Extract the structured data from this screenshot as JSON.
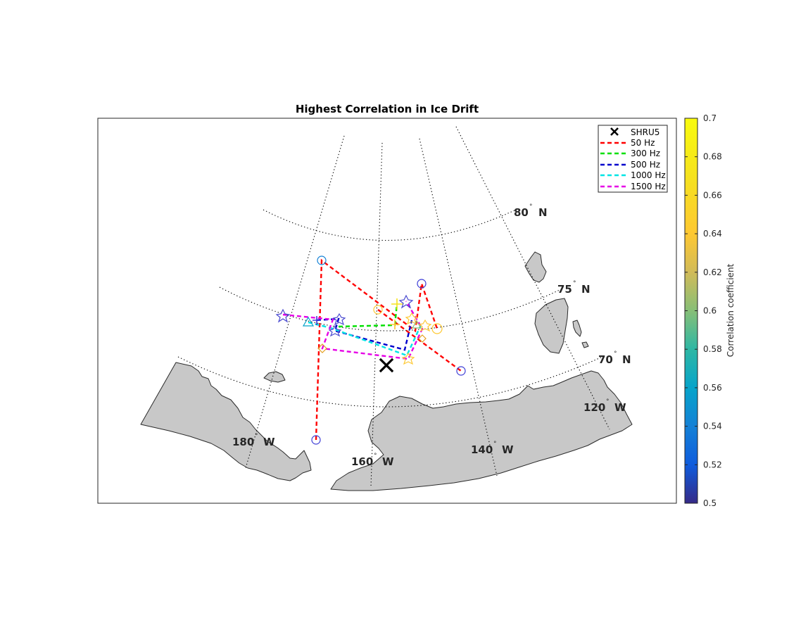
{
  "title": "Highest Correlation in Ice Drift",
  "colorbar": {
    "label": "Correlation coefficient",
    "ticks": [
      "0.5",
      "0.52",
      "0.54",
      "0.56",
      "0.58",
      "0.6",
      "0.62",
      "0.64",
      "0.66",
      "0.68",
      "0.7"
    ],
    "range": [
      0.5,
      0.7
    ],
    "colormap": "parula"
  },
  "legend": {
    "placement": "top-right",
    "entries": [
      {
        "label": "SHRU5",
        "color": "#000000",
        "marker": "x"
      },
      {
        "label": "50 Hz",
        "color": "#ff0000",
        "style": "dashed"
      },
      {
        "label": "300 Hz",
        "color": "#00e000",
        "style": "dashed"
      },
      {
        "label": "500 Hz",
        "color": "#0000cc",
        "style": "dashed"
      },
      {
        "label": "1000 Hz",
        "color": "#00e5e5",
        "style": "dashed"
      },
      {
        "label": "1500 Hz",
        "color": "#e600e6",
        "style": "dashed"
      }
    ]
  },
  "graticule_labels": {
    "parallels": [
      {
        "value": "80",
        "suffix": "N"
      },
      {
        "value": "75",
        "suffix": "N"
      },
      {
        "value": "70",
        "suffix": "N"
      }
    ],
    "meridians": [
      {
        "value": "180",
        "suffix": "W"
      },
      {
        "value": "160",
        "suffix": "W"
      },
      {
        "value": "140",
        "suffix": "W"
      },
      {
        "value": "120",
        "suffix": "W"
      }
    ]
  },
  "map": {
    "projection": "polar (Arctic, Beaufort Sea)",
    "land_color": "#c8c8c8",
    "station": {
      "name": "SHRU5",
      "marker": "x",
      "color": "#000000"
    }
  },
  "chart_data": {
    "type": "scatter",
    "title": "Highest Correlation in Ice Drift",
    "color_variable": "Correlation coefficient",
    "clim": [
      0.5,
      0.7
    ]
  }
}
